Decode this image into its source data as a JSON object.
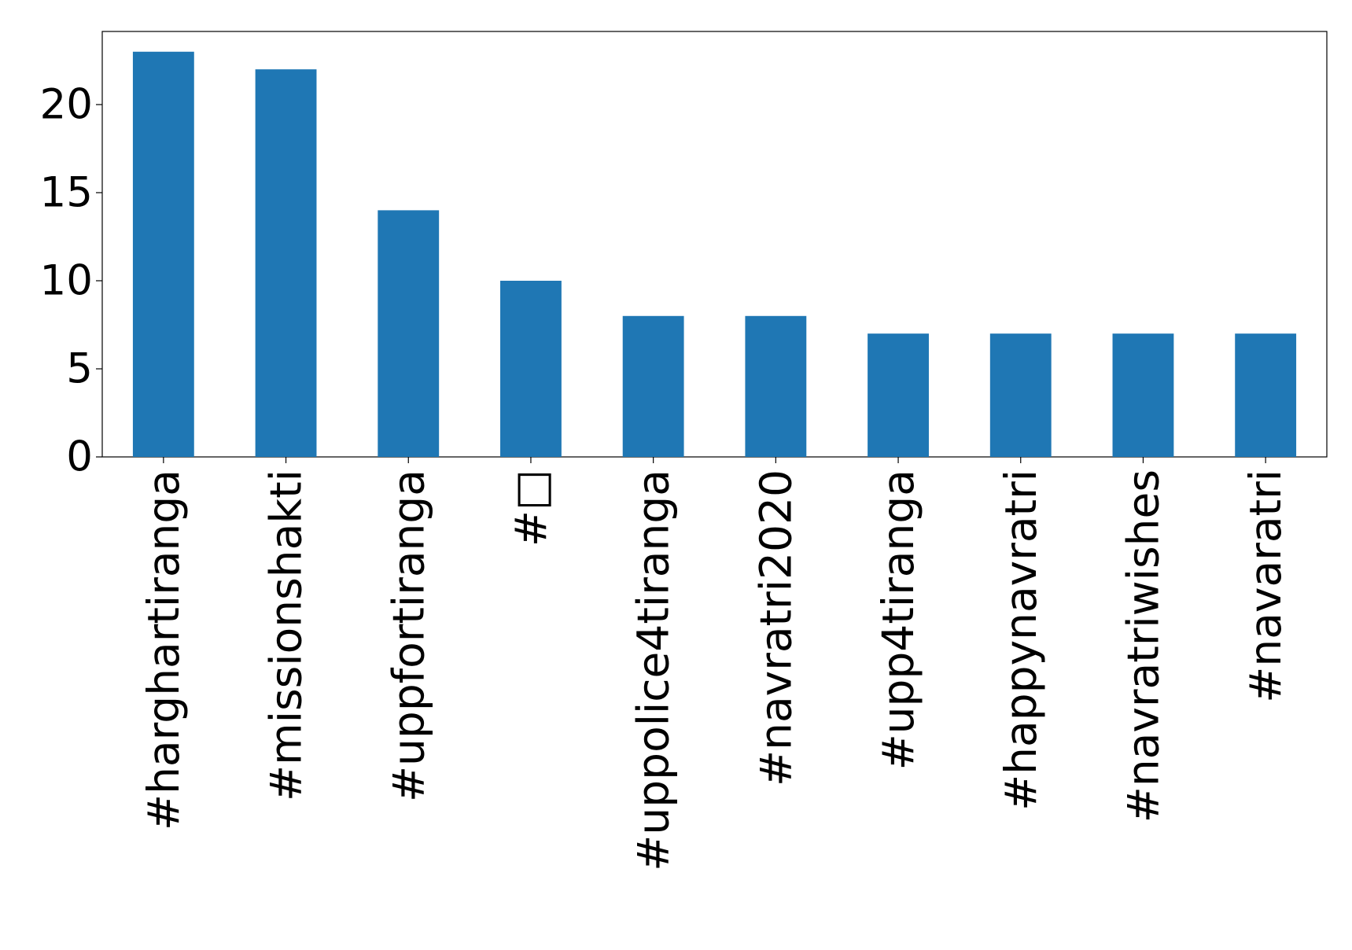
{
  "chart_data": {
    "type": "bar",
    "categories": [
      "#harghartiranga",
      "#missionshakti",
      "#uppfortiranga",
      "#□",
      "#uppolice4tiranga",
      "#navratri2020",
      "#upp4tiranga",
      "#happynavratri",
      "#navratriwishes",
      "#navaratri"
    ],
    "values": [
      23,
      22,
      14,
      10,
      8,
      8,
      7,
      7,
      7,
      7
    ],
    "color": "#1f77b4",
    "ylim": [
      0,
      24.15
    ],
    "yticks": [
      0,
      5,
      10,
      15,
      20
    ],
    "grid": false
  }
}
